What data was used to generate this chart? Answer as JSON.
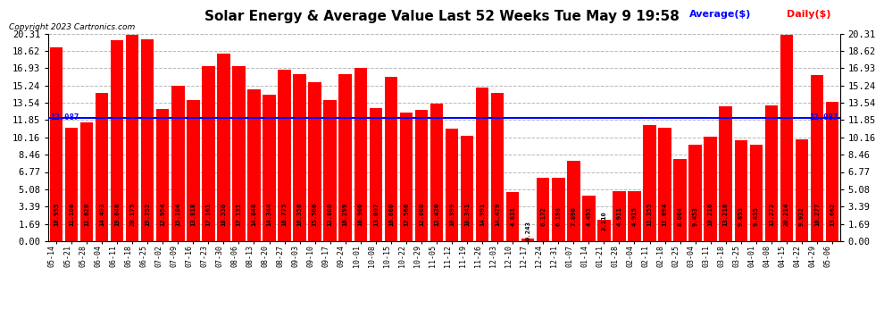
{
  "title": "Solar Energy & Average Value Last 52 Weeks Tue May 9 19:58",
  "copyright": "Copyright 2023 Cartronics.com",
  "legend_average": "Average($)",
  "legend_daily": "Daily($)",
  "average_line": 12.087,
  "bar_color": "#ff0000",
  "average_line_color": "#0000ff",
  "background_color": "#ffffff",
  "grid_color": "#b0b0b0",
  "yticks": [
    0.0,
    1.69,
    3.39,
    5.08,
    6.77,
    8.46,
    10.16,
    11.85,
    13.54,
    15.24,
    16.93,
    18.62,
    20.31
  ],
  "xlabels": [
    "05-14",
    "05-21",
    "05-28",
    "06-04",
    "06-11",
    "06-18",
    "06-25",
    "07-02",
    "07-09",
    "07-16",
    "07-23",
    "07-30",
    "08-06",
    "08-13",
    "08-20",
    "08-27",
    "09-03",
    "09-10",
    "09-17",
    "09-24",
    "10-01",
    "10-08",
    "10-15",
    "10-22",
    "10-29",
    "11-05",
    "11-12",
    "11-19",
    "11-26",
    "12-03",
    "12-10",
    "12-17",
    "12-24",
    "12-31",
    "01-07",
    "01-14",
    "01-21",
    "01-28",
    "02-04",
    "02-11",
    "02-18",
    "02-25",
    "03-04",
    "03-11",
    "03-18",
    "03-25",
    "04-01",
    "04-08",
    "04-15",
    "04-22",
    "04-29",
    "05-06"
  ],
  "values": [
    18.955,
    11.108,
    11.62,
    14.493,
    19.646,
    20.175,
    19.752,
    12.954,
    15.184,
    13.818,
    17.161,
    18.33,
    17.131,
    14.848,
    14.344,
    16.775,
    16.356,
    15.506,
    13.8,
    16.299,
    16.966,
    13.007,
    16.08,
    12.566,
    12.86,
    13.43,
    10.999,
    10.341,
    14.991,
    14.479,
    4.831,
    0.243,
    6.172,
    6.198,
    7.896,
    4.493,
    2.11,
    4.911,
    4.915,
    11.355,
    11.094,
    8.064,
    9.453,
    10.216,
    13.216,
    9.853,
    9.435,
    13.272,
    20.214,
    9.932,
    16.277,
    13.662
  ],
  "bar_value_fontsize": 5.2,
  "title_fontsize": 11,
  "copyright_fontsize": 6.5,
  "xtick_fontsize": 6.0,
  "ytick_fontsize": 7.5,
  "legend_fontsize": 8
}
